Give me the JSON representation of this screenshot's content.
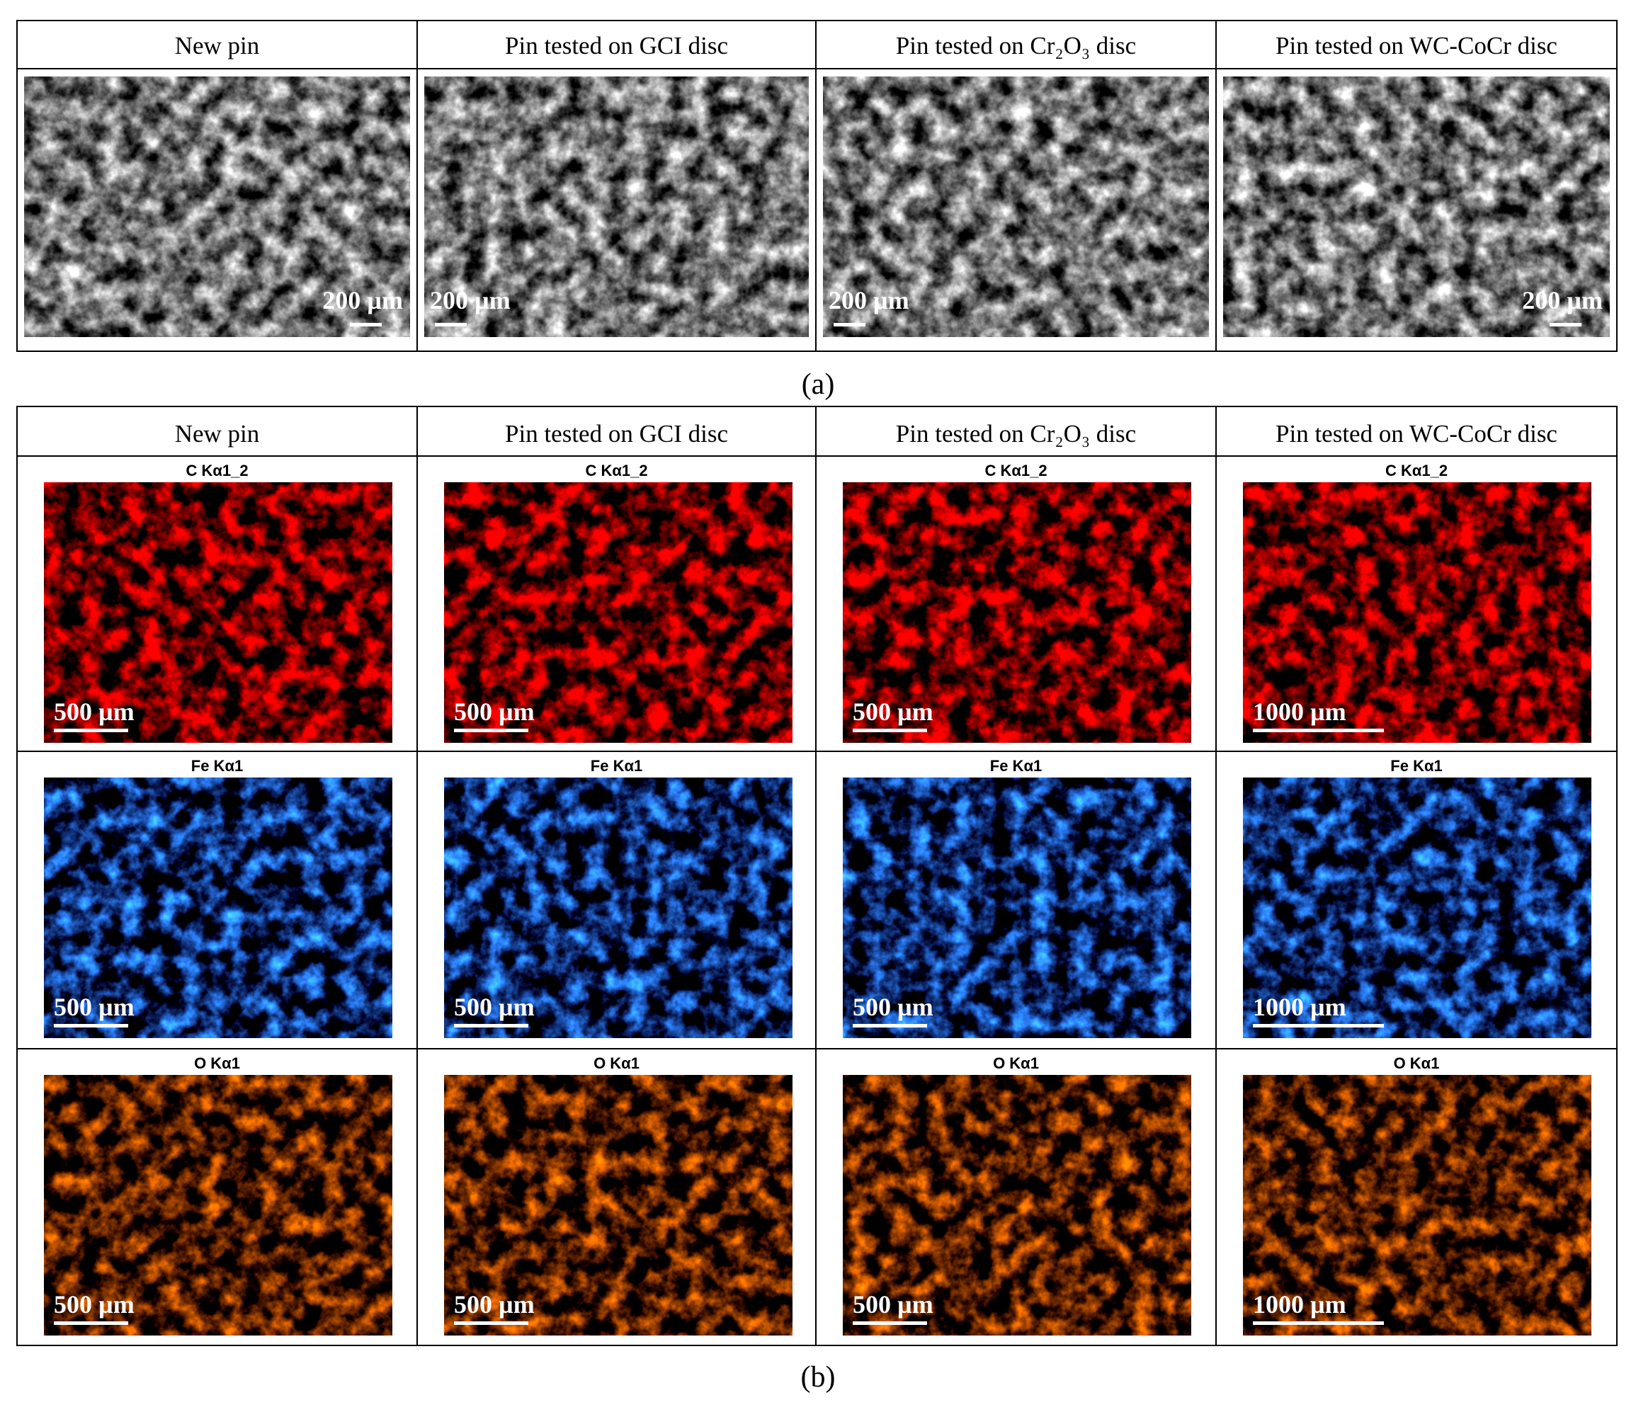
{
  "panel_a": {
    "label": "(a)",
    "columns": [
      {
        "header": "New pin",
        "scale": "200 µm"
      },
      {
        "header": "Pin tested on GCI disc",
        "scale": "200 µm"
      },
      {
        "header": "Pin tested on Cr₂O₃ disc",
        "scale": "200 µm"
      },
      {
        "header": "Pin tested on WC-CoCr disc",
        "scale": "200 µm"
      }
    ]
  },
  "panel_b": {
    "label": "(b)",
    "headers": [
      "New pin",
      "Pin tested on GCI disc",
      "Pin tested on Cr₂O₃ disc",
      "Pin tested on WC-CoCr disc"
    ],
    "rows": [
      {
        "cells": [
          {
            "element": "C Kα1_2",
            "scale": "500 µm"
          },
          {
            "element": "C Kα1_2",
            "scale": "500 µm"
          },
          {
            "element": "C Kα1_2",
            "scale": "500 µm"
          },
          {
            "element": "C Kα1_2",
            "scale": "1000 µm"
          }
        ]
      },
      {
        "cells": [
          {
            "element": "Fe Kα1",
            "scale": "500 µm"
          },
          {
            "element": "Fe Kα1",
            "scale": "500 µm"
          },
          {
            "element": "Fe Kα1",
            "scale": "500 µm"
          },
          {
            "element": "Fe Kα1",
            "scale": "1000 µm"
          }
        ]
      },
      {
        "cells": [
          {
            "element": "O Kα1",
            "scale": "500 µm"
          },
          {
            "element": "O Kα1",
            "scale": "500 µm"
          },
          {
            "element": "O Kα1",
            "scale": "500 µm"
          },
          {
            "element": "O Kα1",
            "scale": "1000 µm"
          }
        ]
      }
    ]
  }
}
